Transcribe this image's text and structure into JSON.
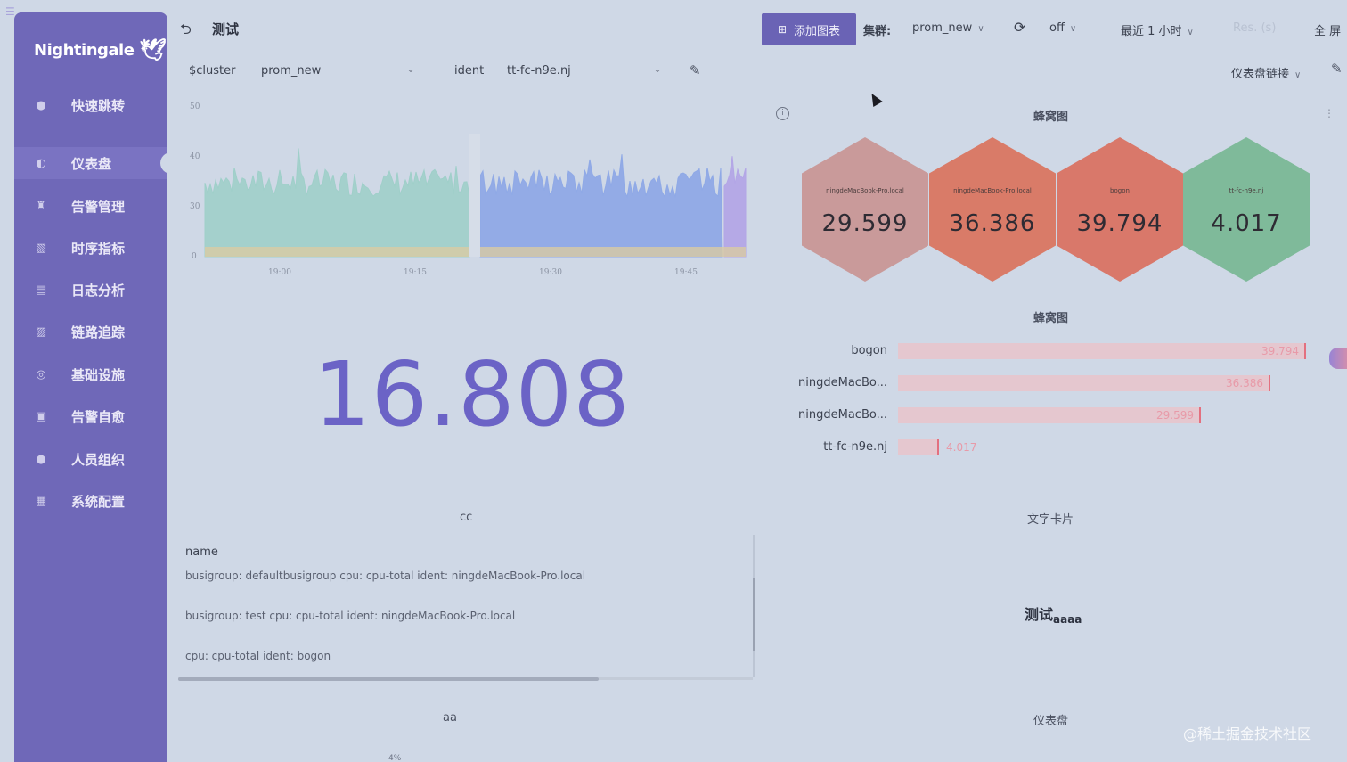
{
  "app": {
    "logo": "Nightingale",
    "logo_icon": "bird-icon",
    "corner_icon": "menu-icon"
  },
  "sidebar": {
    "items": [
      {
        "label": "快速跳转",
        "icon": "search-icon"
      },
      {
        "label": "仪表盘",
        "icon": "dashboard-icon",
        "active": true
      },
      {
        "label": "告警管理",
        "icon": "alarm-icon"
      },
      {
        "label": "时序指标",
        "icon": "chart-icon"
      },
      {
        "label": "日志分析",
        "icon": "log-icon"
      },
      {
        "label": "链路追踪",
        "icon": "trace-icon"
      },
      {
        "label": "基础设施",
        "icon": "infra-icon"
      },
      {
        "label": "告警自愈",
        "icon": "heal-icon"
      },
      {
        "label": "人员组织",
        "icon": "user-icon"
      },
      {
        "label": "系统配置",
        "icon": "settings-icon"
      }
    ]
  },
  "header": {
    "back_icon": "back-icon",
    "title": "测试",
    "add_chart": "添加图表",
    "cluster_label": "集群:",
    "cluster_value": "prom_new",
    "refresh_icon": "refresh-icon",
    "refresh_value": "off",
    "time_range": "最近 1 小时",
    "res": "Res. (s)",
    "fullscreen": "全 屏"
  },
  "variables": {
    "cluster_name": "$cluster",
    "cluster_value": "prom_new",
    "ident_name": "ident",
    "ident_value": "tt-fc-n9e.nj",
    "dashboard_link": "仪表盘链接"
  },
  "timeseries": {
    "y_ticks": [
      "50",
      "40",
      "30",
      "0"
    ],
    "x_ticks": [
      "19:00",
      "19:15",
      "19:30",
      "19:45"
    ]
  },
  "stat": {
    "value": "16.808"
  },
  "table_panel": {
    "title": "cc",
    "header": "name",
    "rows": [
      "busigroup: defaultbusigroup cpu: cpu-total ident: ningdeMacBook-Pro.local",
      "busigroup: test cpu: cpu-total ident: ningdeMacBook-Pro.local",
      "cpu: cpu-total ident: bogon"
    ]
  },
  "hexbin": {
    "title": "蜂窝图",
    "cells": [
      {
        "name": "ningdeMacBook-Pro.local",
        "value": "29.599",
        "color": "#c99a9a"
      },
      {
        "name": "ningdeMacBook-Pro.local",
        "value": "36.386",
        "color": "#d97b68"
      },
      {
        "name": "bogon",
        "value": "39.794",
        "color": "#d9786a"
      },
      {
        "name": "tt-fc-n9e.nj",
        "value": "4.017",
        "color": "#7fba9a"
      }
    ]
  },
  "bargauge": {
    "title": "蜂窝图",
    "max": 40,
    "bars": [
      {
        "label": "bogon",
        "value": 39.794,
        "text": "39.794"
      },
      {
        "label": "ningdeMacBo...",
        "value": 36.386,
        "text": "36.386"
      },
      {
        "label": "ningdeMacBo...",
        "value": 29.599,
        "text": "29.599"
      },
      {
        "label": "tt-fc-n9e.nj",
        "value": 4.017,
        "text": "4.017"
      }
    ]
  },
  "text_card": {
    "title": "文字卡片",
    "text": "测试",
    "sub": "aaaa"
  },
  "bottom": {
    "left_title": "aa",
    "right_title": "仪表盘",
    "left_value": "4%"
  },
  "watermark": "@稀土掘金技术社区"
}
